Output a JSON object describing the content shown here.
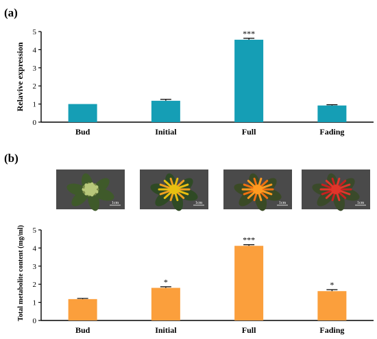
{
  "panels": {
    "a": {
      "label": "(a)",
      "chart_data": {
        "type": "bar",
        "categories": [
          "Bud",
          "Initial",
          "Full",
          "Fading"
        ],
        "values": [
          1.0,
          1.18,
          4.55,
          0.92
        ],
        "errors": [
          0.0,
          0.08,
          0.08,
          0.04
        ],
        "significance": [
          "",
          "",
          "***",
          ""
        ],
        "ylabel": "Relavive expression",
        "xlabel": "",
        "ylim": [
          0,
          5
        ],
        "yticks": [
          0,
          1,
          2,
          3,
          4,
          5
        ],
        "bar_color": "#159eb5",
        "grid": false
      }
    },
    "b": {
      "label": "(b)",
      "photos": [
        {
          "name": "bud-flower-photo",
          "scale_label": "1cm",
          "colors": [
            "#7a8a48",
            "#b8c87a",
            "#3f5a2a"
          ]
        },
        {
          "name": "initial-flower-photo",
          "scale_label": "1cm",
          "colors": [
            "#f0a020",
            "#e8c010",
            "#2f4a25"
          ]
        },
        {
          "name": "full-flower-photo",
          "scale_label": "1cm",
          "colors": [
            "#f07010",
            "#ff9a20",
            "#3a4a25"
          ]
        },
        {
          "name": "fading-flower-photo",
          "scale_label": "1cm",
          "colors": [
            "#c81f1f",
            "#e0352a",
            "#3a4a2a"
          ]
        }
      ],
      "chart_data": {
        "type": "bar",
        "categories": [
          "Bud",
          "Initial",
          "Full",
          "Fading"
        ],
        "values": [
          1.18,
          1.8,
          4.12,
          1.62
        ],
        "errors": [
          0.04,
          0.06,
          0.06,
          0.08
        ],
        "significance": [
          "",
          "*",
          "***",
          "*"
        ],
        "ylabel": "Total metabolite content (mg/ml)",
        "xlabel": "",
        "ylim": [
          0,
          5
        ],
        "yticks": [
          0,
          1,
          2,
          3,
          4,
          5
        ],
        "bar_color": "#fb9f3c",
        "grid": false
      }
    }
  }
}
